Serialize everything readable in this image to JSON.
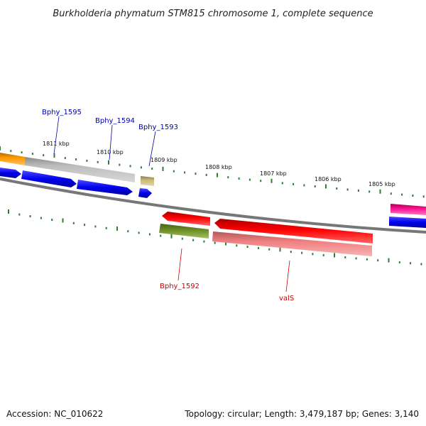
{
  "title": "Burkholderia phymatum STM815 chromosome 1, complete sequence",
  "footer": {
    "accession": "Accession: NC_010622",
    "topology": "Topology: circular; Length: 3,479,187 bp; Genes: 3,140"
  },
  "scale": {
    "ticks": [
      "1811 kbp",
      "1810 kbp",
      "1809 kbp",
      "1808 kbp",
      "1807 kbp",
      "1806 kbp",
      "1805 kbp"
    ]
  },
  "genes": {
    "forward_labels": [
      "Bphy_1595",
      "Bphy_1594",
      "Bphy_1593"
    ],
    "reverse_labels": [
      "Bphy_1592",
      "valS"
    ]
  },
  "colors": {
    "forward_label": "#0000aa",
    "reverse_label": "#cc0000",
    "tick_mark": "#2e7d32",
    "backbone": "#777777",
    "cds_blue": "#0000ee",
    "cds_gray": "#bbbbbb",
    "cds_orange": "#ff9900",
    "cds_olive": "#c8b97a",
    "cds_red": "#ff0000",
    "cds_pink": "#f08080",
    "cds_green": "#6b8e23",
    "cds_magenta": "#ff1493"
  }
}
